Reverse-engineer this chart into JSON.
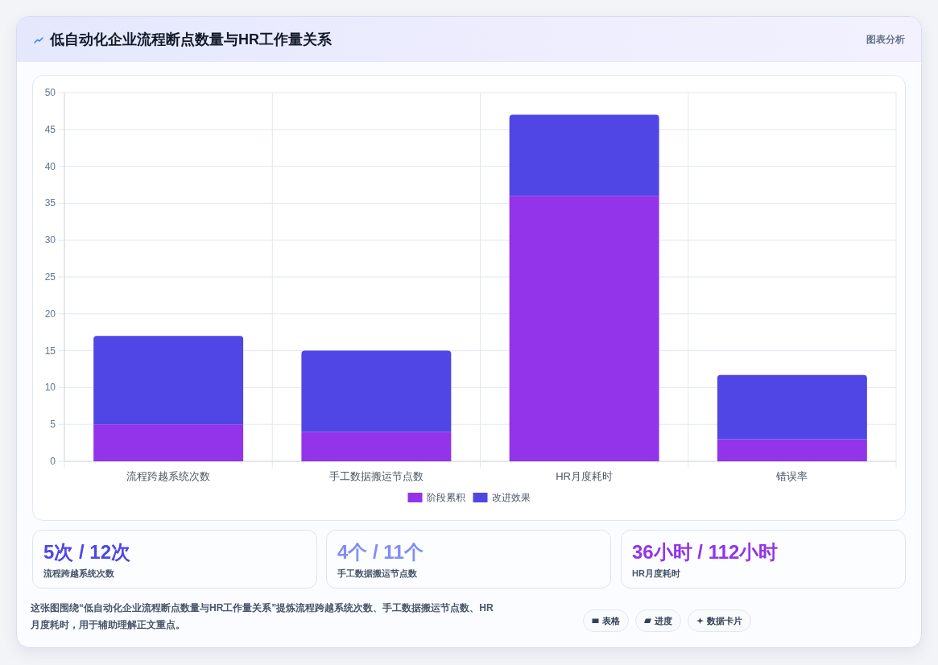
{
  "chart_data": [
    {
      "type": "bar",
      "title": "低自动化企业流程断点数量与HR工作量关系",
      "subtitle": "图表分析",
      "categories": [
        "流程跨越系统次数",
        "手工数据搬运节点数",
        "HR月度耗时",
        "错误率"
      ],
      "series": [
        {
          "name": "阶段累积",
          "color": "#9333ea",
          "values": [
            5,
            4,
            36,
            3
          ]
        },
        {
          "name": "改进效果",
          "color": "#4f46e5",
          "values": [
            12,
            11,
            11,
            8.7
          ]
        }
      ],
      "stacked": true,
      "ylim": [
        0,
        50
      ],
      "yticks": [
        0,
        5,
        10,
        15,
        20,
        25,
        30,
        35,
        40,
        45,
        50
      ],
      "grid": true,
      "legend": "bottom"
    },
    {
      "type": "other",
      "annotations": [
        "5次 / 12次",
        "流程跨越系统次数",
        "4个 / 11个",
        "手工数据搬运节点数",
        "36小时 / 112小时",
        "HR月度耗时",
        "这张图围绕“低自动化企业流程断点数量与HR工作量关系”提炼流程跨越系统次数、手工数据搬运节点数、HR月度耗时，用于辅助理解正文重点。",
        "表格",
        "进度",
        "数据卡片"
      ]
    }
  ]
}
